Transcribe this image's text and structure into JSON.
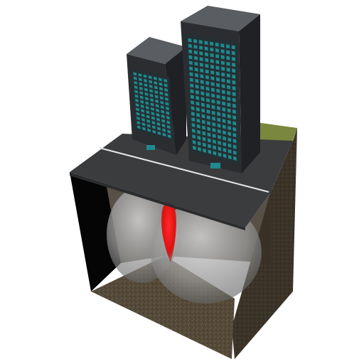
{
  "scene": {
    "subject": "3d-city-block-cutaway",
    "colors": {
      "background": "#ffffff",
      "road": "#3a3c3e",
      "road_line": "#e6e6e6",
      "building_dark": "#2b2d30",
      "building_mid": "#45484c",
      "building_top": "#5a5d61",
      "window_teal": "#1f8a8e",
      "window_teal_dark": "#115a5e",
      "soil_front": "#4f4434",
      "soil_side": "#3e3528",
      "soil_floor": "#5a5040",
      "grass": "#6b7a2a",
      "wall_black": "#050505",
      "bubble": "#c9c9c9",
      "hotspot_red": "#ff2020"
    },
    "objects": [
      {
        "name": "short-tower",
        "window_rows": 13,
        "window_cols": 7
      },
      {
        "name": "tall-tower",
        "window_rows": 20,
        "window_cols": 9
      },
      {
        "name": "road"
      },
      {
        "name": "soil-block"
      },
      {
        "name": "underground-bubble-left"
      },
      {
        "name": "underground-bubble-right"
      },
      {
        "name": "red-hotspot"
      }
    ]
  }
}
